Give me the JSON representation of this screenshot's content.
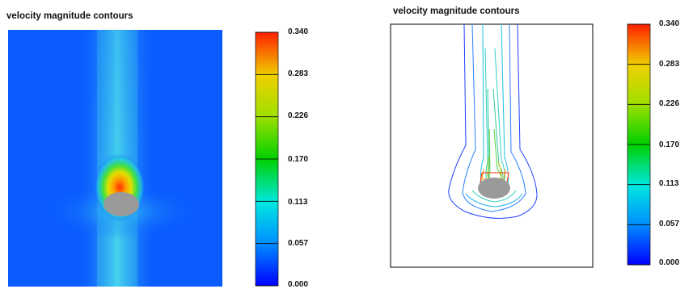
{
  "left_panel": {
    "title": "velocity magnitude contours",
    "colorbar": {
      "ticks": [
        "0.340",
        "0.283",
        "0.226",
        "0.170",
        "0.113",
        "0.057",
        "0.000"
      ]
    }
  },
  "right_panel": {
    "title": "velocity magnitude contours",
    "colorbar": {
      "ticks": [
        "0.340",
        "0.283",
        "0.226",
        "0.170",
        "0.113",
        "0.057",
        "0.000"
      ]
    }
  },
  "colors": {
    "cylinder": "#9a9a9a",
    "colormap": [
      "#0000ff",
      "#0090ff",
      "#00e8e0",
      "#00d000",
      "#a0e000",
      "#f0d000",
      "#ff2000"
    ]
  }
}
